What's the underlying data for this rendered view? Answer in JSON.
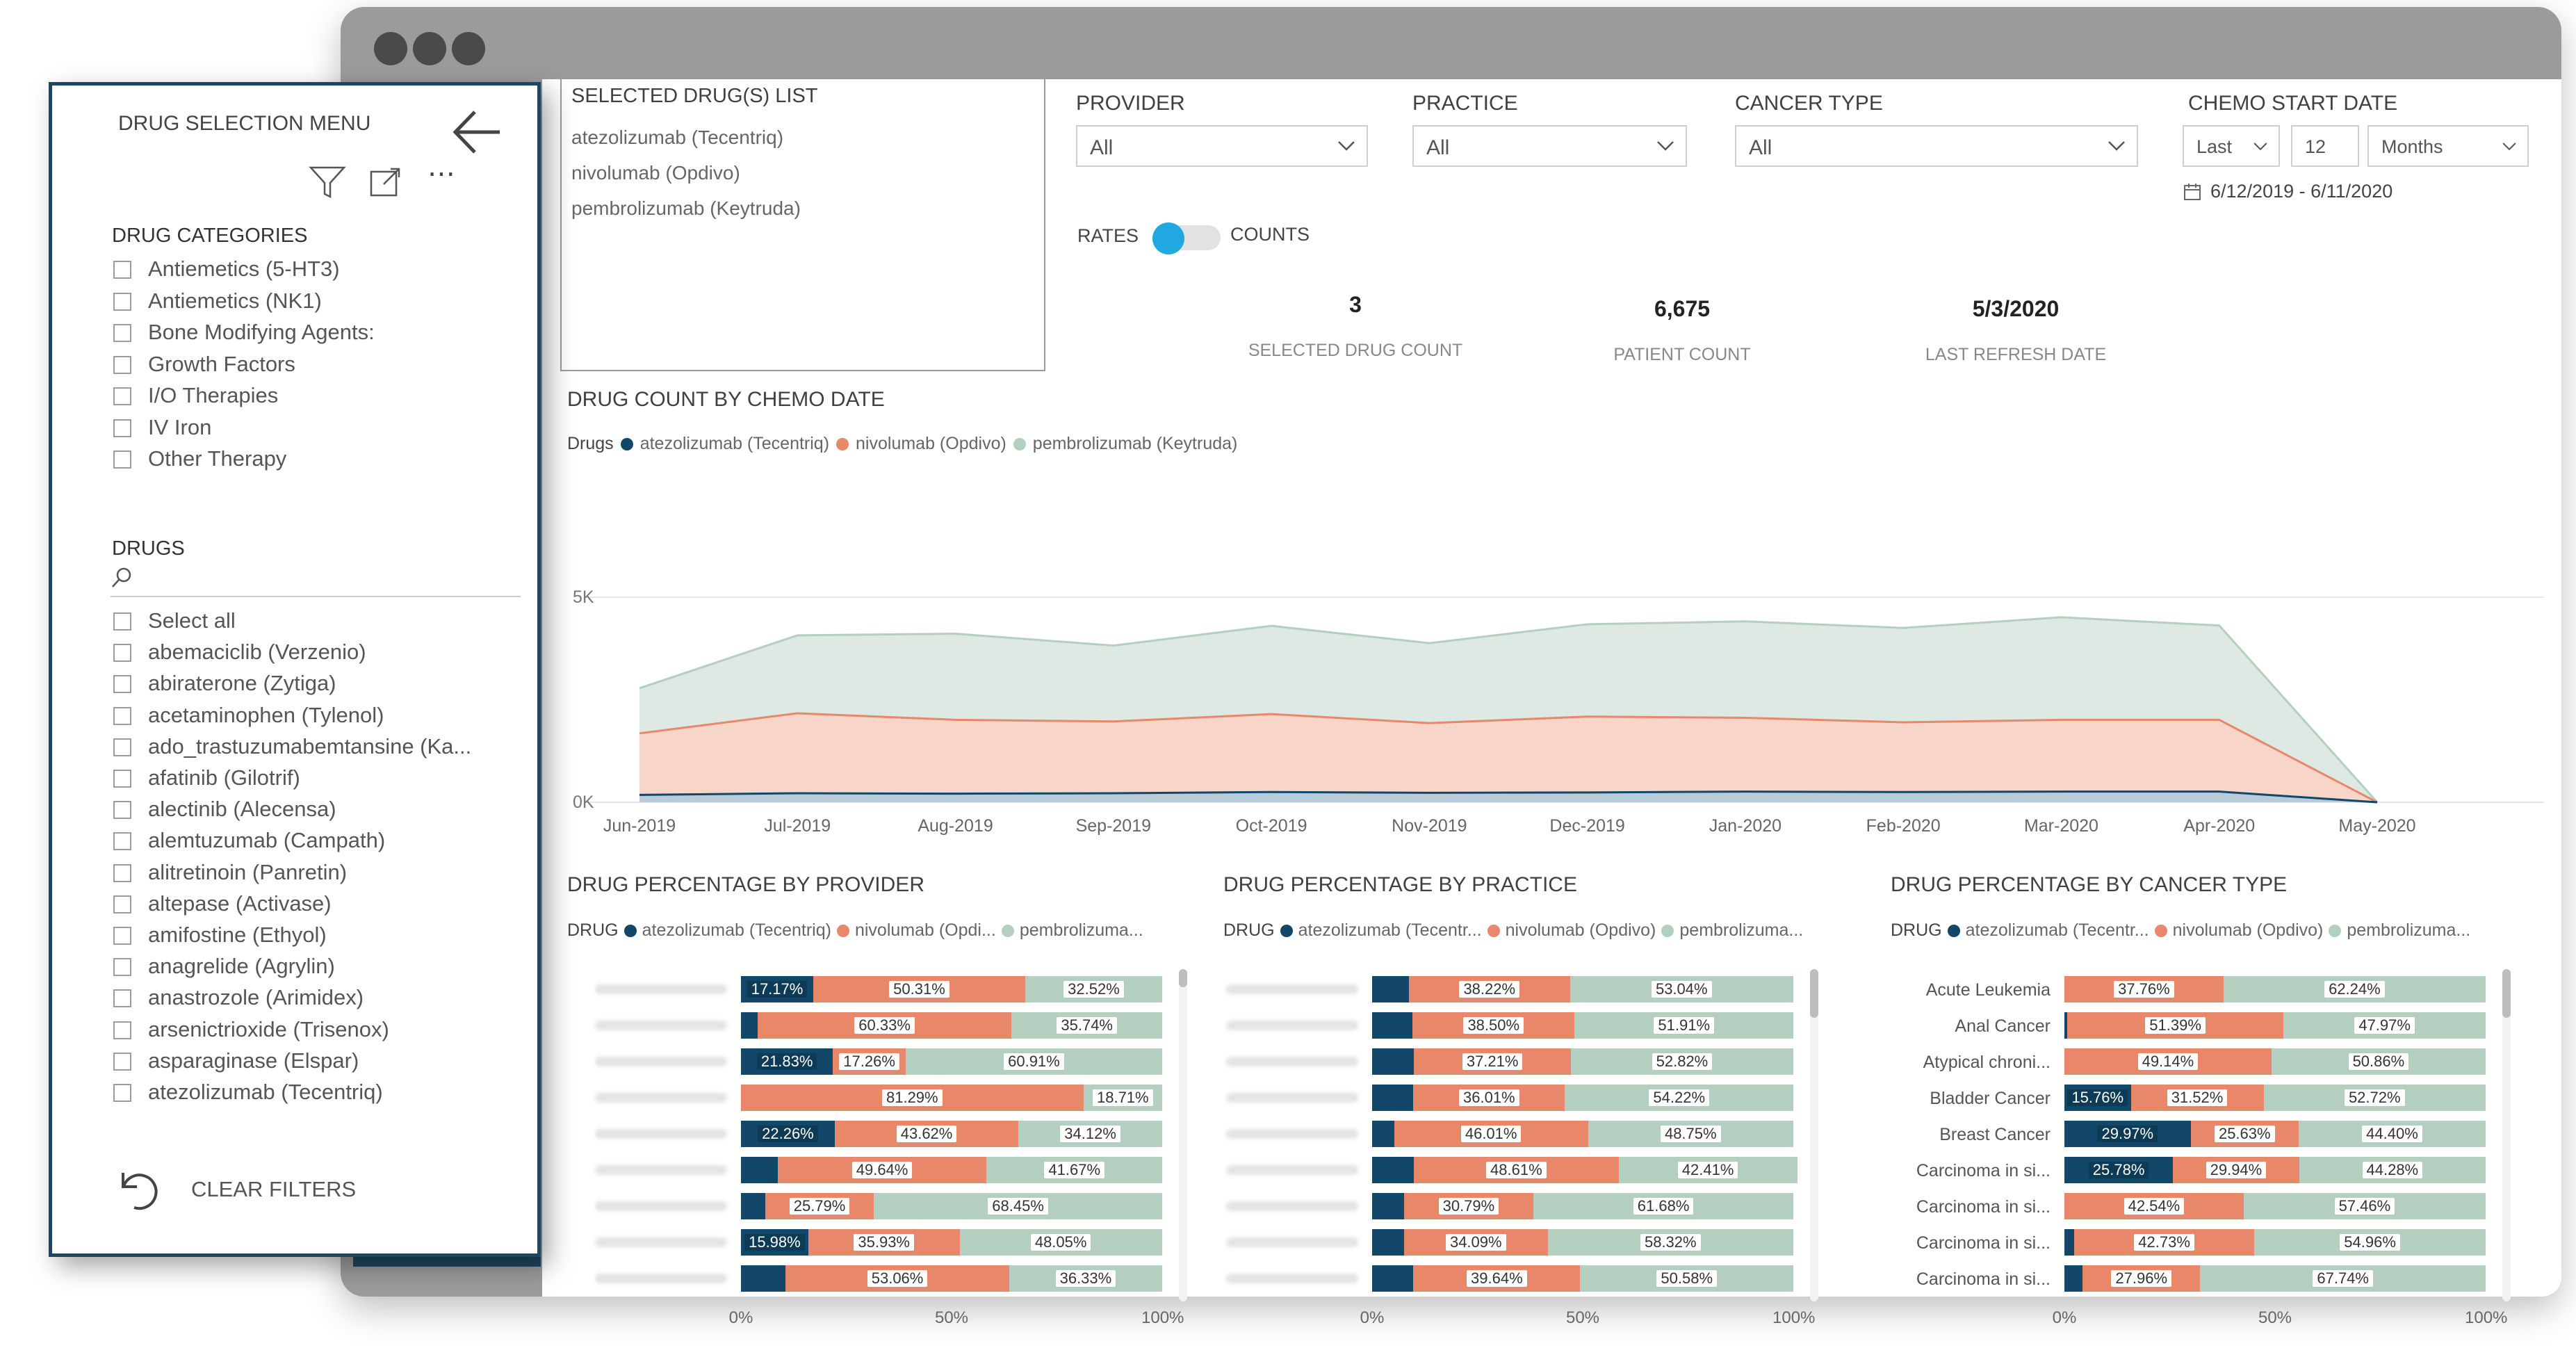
{
  "panel": {
    "title": "DRUG SELECTION MENU",
    "categories_header": "DRUG CATEGORIES",
    "categories": [
      "Antiemetics (5-HT3)",
      "Antiemetics (NK1)",
      "Bone Modifying Agents:",
      "Growth Factors",
      "I/O Therapies",
      "IV Iron",
      "Other Therapy"
    ],
    "drugs_header": "DRUGS",
    "drugs": [
      "Select all",
      "abemaciclib (Verzenio)",
      "abiraterone (Zytiga)",
      "acetaminophen (Tylenol)",
      "ado_trastuzumabemtansine (Ka...",
      "afatinib (Gilotrif)",
      "alectinib (Alecensa)",
      "alemtuzumab (Campath)",
      "alitretinoin (Panretin)",
      "altepase (Activase)",
      "amifostine (Ethyol)",
      "anagrelide (Agrylin)",
      "anastrozole (Arimidex)",
      "arsenictrioxide (Trisenox)",
      "asparaginase (Elspar)",
      "atezolizumab (Tecentriq)"
    ],
    "clear_filters": "CLEAR FILTERS"
  },
  "selected": {
    "header": "SELECTED DRUG(S) LIST",
    "items": [
      "atezolizumab (Tecentriq)",
      "nivolumab (Opdivo)",
      "pembrolizumab (Keytruda)"
    ]
  },
  "filters": {
    "provider": {
      "label": "PROVIDER",
      "value": "All"
    },
    "practice": {
      "label": "PRACTICE",
      "value": "All"
    },
    "cancer_type": {
      "label": "CANCER TYPE",
      "value": "All"
    },
    "chemo": {
      "label": "CHEMO START DATE",
      "relative": "Last",
      "number": "12",
      "unit": "Months",
      "range": "6/12/2019 - 6/11/2020"
    }
  },
  "toggle": {
    "left": "RATES",
    "right": "COUNTS"
  },
  "kpis": [
    {
      "value": "3",
      "label": "SELECTED DRUG COUNT"
    },
    {
      "value": "6,675",
      "label": "PATIENT COUNT"
    },
    {
      "value": "5/3/2020",
      "label": "LAST REFRESH DATE"
    }
  ],
  "colors": {
    "atezolizumab": "#12476a",
    "nivolumab": "#e8876a",
    "pembrolizumab": "#b4cfc0",
    "accent": "#21a8e0"
  },
  "area_chart": {
    "title": "DRUG COUNT BY CHEMO DATE",
    "legend_title": "Drugs",
    "legend": [
      "atezolizumab (Tecentriq)",
      "nivolumab (Opdivo)",
      "pembrolizumab (Keytruda)"
    ],
    "y_ticks": [
      "5K",
      "0K"
    ]
  },
  "bar_charts": {
    "provider": {
      "title": "DRUG PERCENTAGE BY PROVIDER",
      "legend_title": "DRUG",
      "legend": [
        "atezolizumab (Tecentriq)",
        "nivolumab (Opdi...",
        "pembrolizuma..."
      ]
    },
    "practice": {
      "title": "DRUG PERCENTAGE BY PRACTICE",
      "legend_title": "DRUG",
      "legend": [
        "atezolizumab (Tecentr...",
        "nivolumab (Opdivo)",
        "pembrolizuma..."
      ]
    },
    "cancer": {
      "title": "DRUG PERCENTAGE BY CANCER TYPE",
      "legend_title": "DRUG",
      "legend": [
        "atezolizumab (Tecentr...",
        "nivolumab (Opdivo)",
        "pembrolizuma..."
      ]
    }
  },
  "x_ticks": [
    "0%",
    "50%",
    "100%"
  ],
  "chart_data": [
    {
      "type": "area",
      "title": "DRUG COUNT BY CHEMO DATE",
      "x": [
        "Jun-2019",
        "Jul-2019",
        "Aug-2019",
        "Sep-2019",
        "Oct-2019",
        "Nov-2019",
        "Dec-2019",
        "Jan-2020",
        "Feb-2020",
        "Mar-2020",
        "Apr-2020",
        "May-2020"
      ],
      "ylim": [
        0,
        5500
      ],
      "stacked": true,
      "series": [
        {
          "name": "atezolizumab (Tecentriq)",
          "values": [
            180,
            220,
            210,
            220,
            250,
            230,
            240,
            260,
            250,
            260,
            260,
            0
          ]
        },
        {
          "name": "nivolumab (Opdivo)",
          "values": [
            1500,
            1950,
            1800,
            1750,
            1900,
            1700,
            1850,
            1800,
            1700,
            1750,
            1750,
            0
          ]
        },
        {
          "name": "pembrolizumab (Keytruda)",
          "values": [
            1100,
            1900,
            2100,
            1850,
            2150,
            1950,
            2250,
            2350,
            2300,
            2500,
            2300,
            0
          ]
        }
      ]
    },
    {
      "type": "bar",
      "title": "DRUG PERCENTAGE BY PROVIDER",
      "stacked": true,
      "series": [
        {
          "name": "atezolizumab (Tecentriq)",
          "values": [
            17.17,
            3.93,
            21.83,
            0,
            22.26,
            8.69,
            5.76,
            15.98,
            10.61
          ]
        },
        {
          "name": "nivolumab (Opdivo)",
          "values": [
            50.31,
            60.33,
            17.26,
            81.29,
            43.62,
            49.64,
            25.79,
            35.93,
            53.06
          ]
        },
        {
          "name": "pembrolizumab (Keytruda)",
          "values": [
            32.52,
            35.74,
            60.91,
            18.71,
            34.12,
            41.67,
            68.45,
            48.05,
            36.33
          ]
        }
      ]
    },
    {
      "type": "bar",
      "title": "DRUG PERCENTAGE BY PRACTICE",
      "stacked": true,
      "series": [
        {
          "name": "atezolizumab (Tecentriq)",
          "values": [
            8.74,
            9.59,
            9.97,
            9.77,
            5.24,
            9.91,
            7.53,
            7.59,
            9.78
          ]
        },
        {
          "name": "nivolumab (Opdivo)",
          "values": [
            38.22,
            38.5,
            37.21,
            36.01,
            46.01,
            48.61,
            30.79,
            34.09,
            39.64
          ]
        },
        {
          "name": "pembrolizumab (Keytruda)",
          "values": [
            53.04,
            51.91,
            52.82,
            54.22,
            48.75,
            42.41,
            61.68,
            58.32,
            50.58
          ]
        }
      ]
    },
    {
      "type": "bar",
      "title": "DRUG PERCENTAGE BY CANCER TYPE",
      "stacked": true,
      "categories": [
        "Acute Leukemia",
        "Anal Cancer",
        "Atypical chroni...",
        "Bladder Cancer",
        "Breast Cancer",
        "Carcinoma in si...",
        "Carcinoma in si...",
        "Carcinoma in si...",
        "Carcinoma in si..."
      ],
      "series": [
        {
          "name": "atezolizumab (Tecentriq)",
          "values": [
            0,
            0.64,
            0,
            15.76,
            29.97,
            25.78,
            0,
            2.33,
            4.29
          ]
        },
        {
          "name": "nivolumab (Opdivo)",
          "values": [
            37.76,
            51.39,
            49.14,
            31.52,
            25.63,
            29.94,
            42.54,
            42.73,
            27.96
          ]
        },
        {
          "name": "pembrolizumab (Keytruda)",
          "values": [
            62.24,
            47.97,
            50.86,
            52.72,
            44.4,
            44.28,
            57.46,
            54.96,
            67.74
          ]
        }
      ]
    }
  ]
}
